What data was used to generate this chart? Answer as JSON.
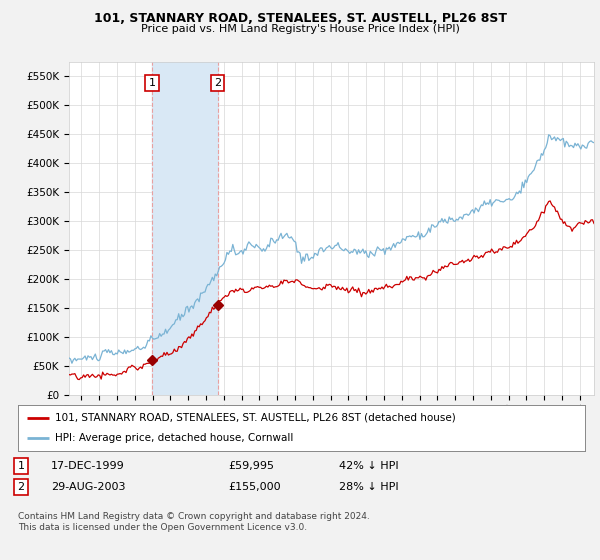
{
  "title": "101, STANNARY ROAD, STENALEES, ST. AUSTELL, PL26 8ST",
  "subtitle": "Price paid vs. HM Land Registry's House Price Index (HPI)",
  "ylabel_values": [
    "£0",
    "£50K",
    "£100K",
    "£150K",
    "£200K",
    "£250K",
    "£300K",
    "£350K",
    "£400K",
    "£450K",
    "£500K",
    "£550K"
  ],
  "yticks": [
    0,
    50000,
    100000,
    150000,
    200000,
    250000,
    300000,
    350000,
    400000,
    450000,
    500000,
    550000
  ],
  "ylim": [
    0,
    575000
  ],
  "xlim_start": 1995.3,
  "xlim_end": 2024.8,
  "hpi_color": "#7ab3d4",
  "price_color": "#cc0000",
  "shade_color": "#d9e8f5",
  "bg_color": "#f2f2f2",
  "plot_bg_color": "#ffffff",
  "transaction1_price": 59995,
  "transaction1_year": 1999.96,
  "transaction2_price": 155000,
  "transaction2_year": 2003.66,
  "legend_line1": "101, STANNARY ROAD, STENALEES, ST. AUSTELL, PL26 8ST (detached house)",
  "legend_line2": "HPI: Average price, detached house, Cornwall",
  "footer": "Contains HM Land Registry data © Crown copyright and database right 2024.\nThis data is licensed under the Open Government Licence v3.0.",
  "shade_x1_start": 1999.96,
  "shade_x1_end": 2003.66
}
